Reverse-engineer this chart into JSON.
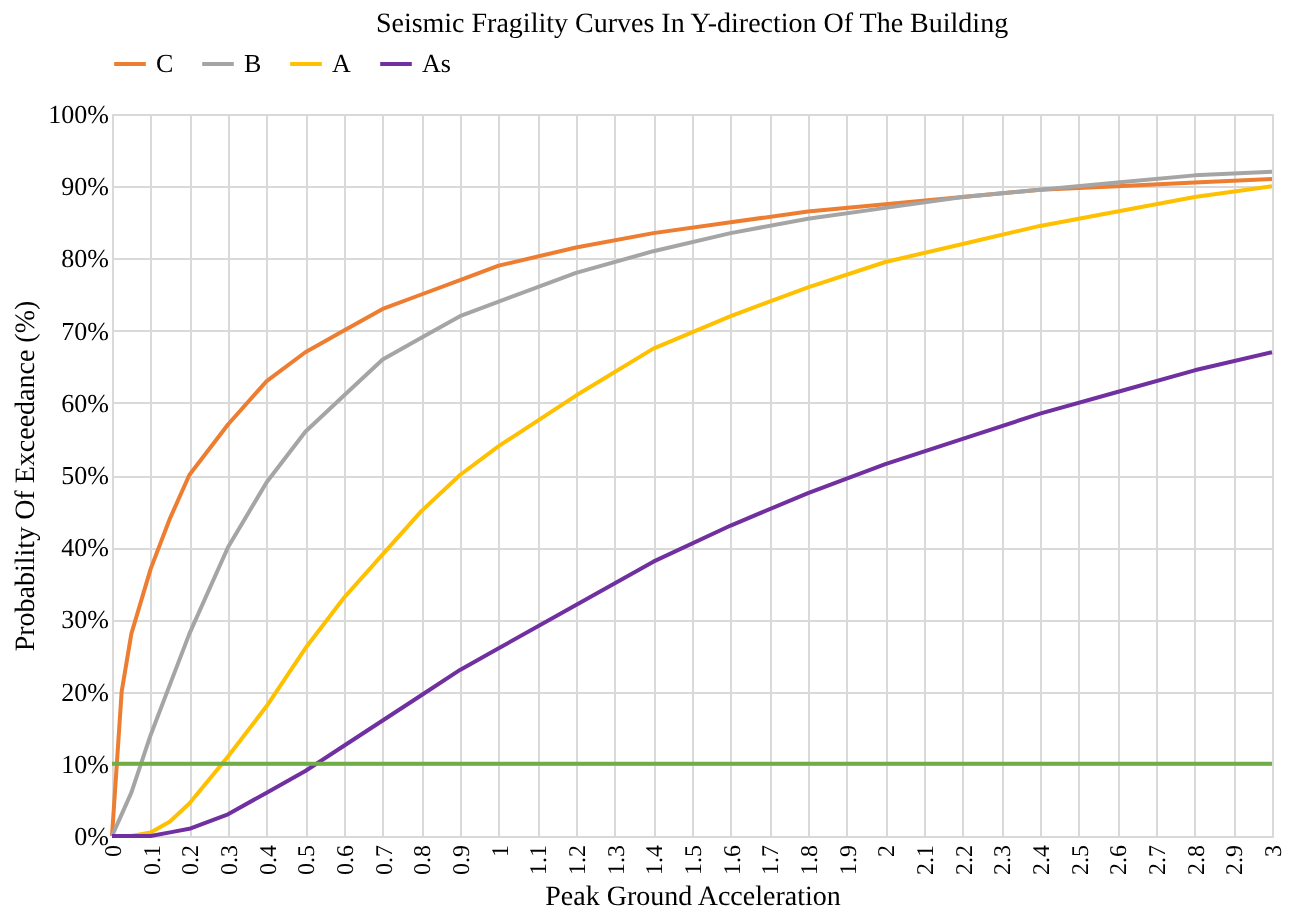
{
  "chart_data": {
    "type": "line",
    "title": "Seismic Fragility Curves In Y-direction Of The Building",
    "xlabel": "Peak Ground Acceleration",
    "ylabel": "Probability Of Exceedance (%)",
    "x": [
      0,
      0.025,
      0.05,
      0.1,
      0.15,
      0.2,
      0.3,
      0.4,
      0.5,
      0.6,
      0.7,
      0.8,
      0.9,
      1,
      1.2,
      1.4,
      1.6,
      1.8,
      2,
      2.2,
      2.4,
      2.6,
      2.8,
      3
    ],
    "series": [
      {
        "name": "C",
        "color": "#ed7d31",
        "values": [
          0,
          20,
          28,
          37,
          44,
          50,
          57,
          63,
          67,
          70,
          73,
          75,
          77,
          79,
          81.5,
          83.5,
          85,
          86.5,
          87.5,
          88.5,
          89.5,
          90,
          90.5,
          91
        ]
      },
      {
        "name": "B",
        "color": "#a5a5a5",
        "values": [
          0,
          3,
          6,
          14,
          21,
          28,
          40,
          49,
          56,
          61,
          66,
          69,
          72,
          74,
          78,
          81,
          83.5,
          85.5,
          87,
          88.5,
          89.5,
          90.5,
          91.5,
          92
        ]
      },
      {
        "name": "A",
        "color": "#ffc000",
        "values": [
          0,
          0,
          0,
          0.5,
          2,
          4.5,
          11,
          18,
          26,
          33,
          39,
          45,
          50,
          54,
          61,
          67.5,
          72,
          76,
          79.5,
          82,
          84.5,
          86.5,
          88.5,
          90
        ]
      },
      {
        "name": "As",
        "color": "#7030a0",
        "values": [
          0,
          0,
          0,
          0,
          0.5,
          1,
          3,
          6,
          9,
          12.5,
          16,
          19.5,
          23,
          26,
          32,
          38,
          43,
          47.5,
          51.5,
          55,
          58.5,
          61.5,
          64.5,
          67
        ]
      }
    ],
    "ref_lines": [
      {
        "axis": "y",
        "value": 10,
        "label": null,
        "color": "#70ad47"
      }
    ],
    "xlim": [
      0,
      3
    ],
    "xticks": [
      0,
      0.1,
      0.2,
      0.3,
      0.4,
      0.5,
      0.6,
      0.7,
      0.8,
      0.9,
      1,
      1.1,
      1.2,
      1.3,
      1.4,
      1.5,
      1.6,
      1.7,
      1.8,
      1.9,
      2,
      2.1,
      2.2,
      2.3,
      2.4,
      2.5,
      2.6,
      2.7,
      2.8,
      2.9,
      3
    ],
    "ylim": [
      0,
      100
    ],
    "yticks": [
      {
        "value": 0,
        "label": "0%"
      },
      {
        "value": 10,
        "label": "10%"
      },
      {
        "value": 20,
        "label": "20%"
      },
      {
        "value": 30,
        "label": "30%"
      },
      {
        "value": 40,
        "label": "40%"
      },
      {
        "value": 50,
        "label": "50%"
      },
      {
        "value": 60,
        "label": "60%"
      },
      {
        "value": 70,
        "label": "70%"
      },
      {
        "value": 80,
        "label": "80%"
      },
      {
        "value": 90,
        "label": "90%"
      },
      {
        "value": 100,
        "label": "100%"
      }
    ],
    "grid": true,
    "legend": "top",
    "marker": "none",
    "line_style": "solid"
  }
}
